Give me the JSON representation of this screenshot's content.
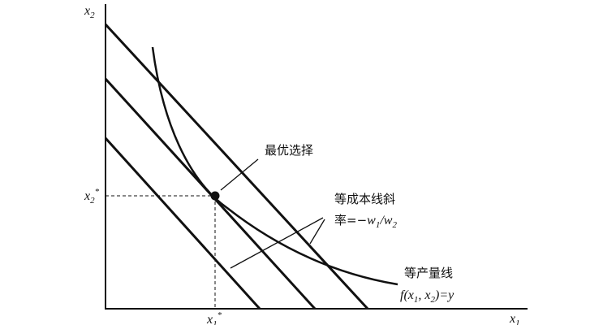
{
  "labels": {
    "y_axis": [
      {
        "text": "x",
        "style": "normal"
      },
      {
        "text": "2",
        "style": "sub"
      }
    ],
    "x_axis": [
      {
        "text": "x",
        "style": "normal"
      },
      {
        "text": "1",
        "style": "sub"
      }
    ],
    "x2_star": [
      {
        "text": "x",
        "style": "normal"
      },
      {
        "text": "2",
        "style": "sub"
      },
      {
        "text": "*",
        "style": "sup"
      }
    ],
    "x1_star": [
      {
        "text": "x",
        "style": "normal"
      },
      {
        "text": "1",
        "style": "sub"
      },
      {
        "text": "*",
        "style": "sup"
      }
    ],
    "optimal_choice": [
      {
        "text": "最优选择",
        "style": "normal"
      }
    ],
    "isocost_1": [
      {
        "text": "等成本线斜",
        "style": "normal"
      }
    ],
    "isocost_2": [
      {
        "text": "率=−",
        "style": "normal"
      },
      {
        "text": "w",
        "style": "normal"
      },
      {
        "text": "1",
        "style": "sub"
      },
      {
        "text": "/",
        "style": "normal"
      },
      {
        "text": "w",
        "style": "normal"
      },
      {
        "text": "2",
        "style": "sub"
      }
    ],
    "isoquant_1": [
      {
        "text": "等产量线",
        "style": "normal"
      }
    ],
    "isoquant_2": [
      {
        "text": "f",
        "style": "normal"
      },
      {
        "text": "(",
        "style": "normal"
      },
      {
        "text": "x",
        "style": "normal"
      },
      {
        "text": "1",
        "style": "sub"
      },
      {
        "text": ", ",
        "style": "normal"
      },
      {
        "text": "x",
        "style": "normal"
      },
      {
        "text": "2",
        "style": "sub"
      },
      {
        "text": ")=",
        "style": "normal"
      },
      {
        "text": "y",
        "style": "normal"
      }
    ]
  }
}
